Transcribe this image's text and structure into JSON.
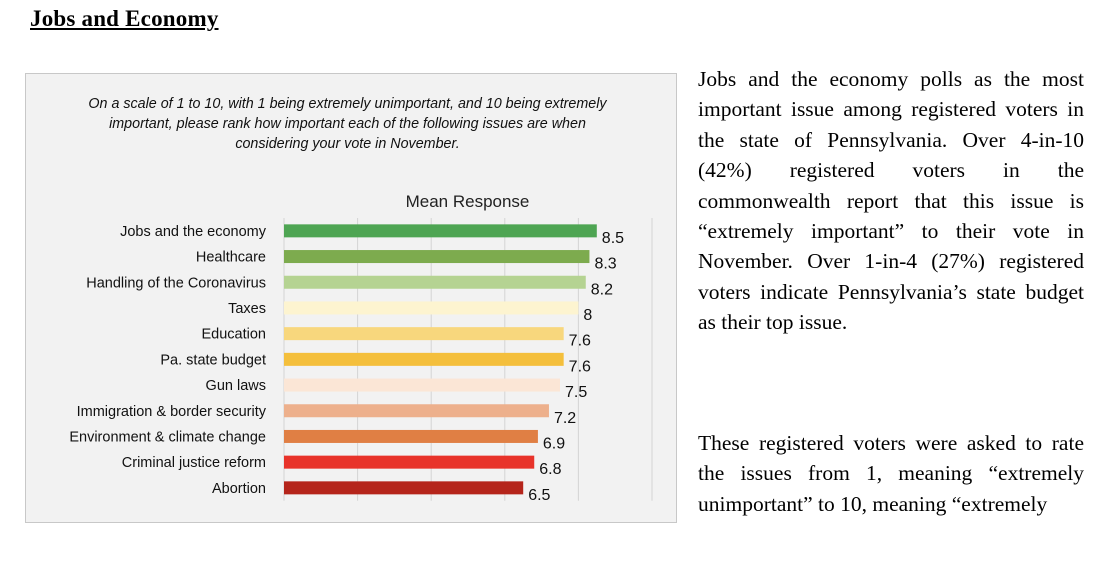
{
  "page": {
    "heading": "Jobs and Economy",
    "paragraph1": "Jobs and the economy polls as the most important issue among registered voters in the state of Pennsylvania. Over 4-in-10 (42%) registered voters in the commonwealth report that this issue is “extremely important” to their vote in November. Over 1-in-4 (27%) registered voters indicate Pennsylvania’s state budget as their top issue.",
    "paragraph2": "These registered voters were asked to rate the issues from 1, meaning “extremely unimportant” to 10, meaning “extremely"
  },
  "chart_data": {
    "type": "bar",
    "orientation": "horizontal",
    "question": "On a scale of 1 to 10, with 1 being extremely unimportant, and 10 being extremely important, please rank how important each of the following issues are when considering your vote in November.",
    "title": "Mean Response",
    "categories": [
      "Jobs and the economy",
      "Healthcare",
      "Handling of the Coronavirus",
      "Taxes",
      "Education",
      "Pa. state budget",
      "Gun laws",
      "Immigration & border security",
      "Environment & climate change",
      "Criminal justice reform",
      "Abortion"
    ],
    "values": [
      8.5,
      8.3,
      8.2,
      8,
      7.6,
      7.6,
      7.5,
      7.2,
      6.9,
      6.8,
      6.5
    ],
    "value_labels": [
      "8.5",
      "8.3",
      "8.2",
      "8",
      "7.6",
      "7.6",
      "7.5",
      "7.2",
      "6.9",
      "6.8",
      "6.5"
    ],
    "colors": [
      "#4ea553",
      "#7dab4e",
      "#b5d392",
      "#fdf4d0",
      "#f8d77d",
      "#f4bf3c",
      "#fbe6d6",
      "#edb08c",
      "#e07f44",
      "#e8332a",
      "#b5251b"
    ],
    "xlim": [
      0,
      10
    ],
    "grid": true,
    "legend": "none"
  }
}
